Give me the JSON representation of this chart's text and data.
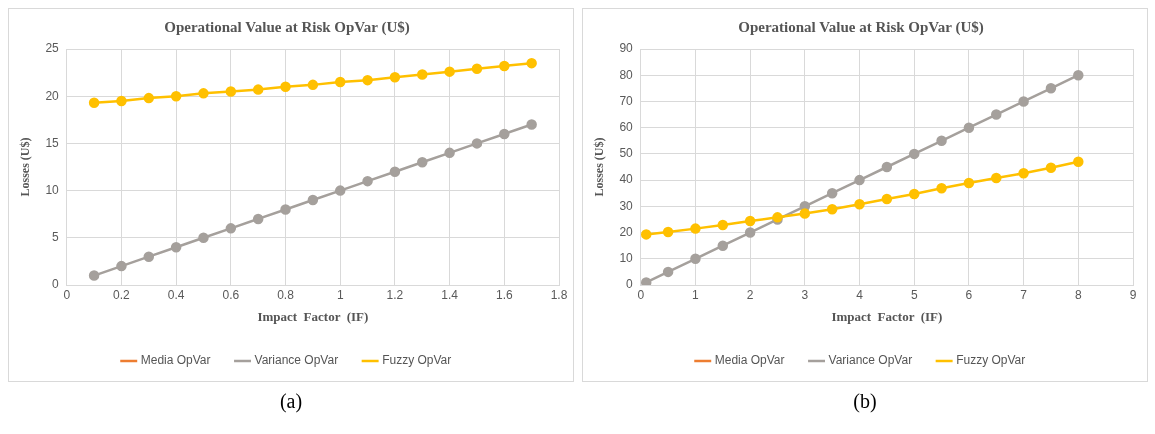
{
  "chart_data": [
    {
      "type": "line",
      "title": "Operational Value at Risk OpVar (U$)",
      "xlabel": "Impact  Factor  (IF)",
      "ylabel": "Losses (U$)",
      "x": [
        0.1,
        0.2,
        0.3,
        0.4,
        0.5,
        0.6,
        0.7,
        0.8,
        0.9,
        1.0,
        1.1,
        1.2,
        1.3,
        1.4,
        1.5,
        1.6,
        1.7
      ],
      "xlim": [
        0,
        1.8
      ],
      "xticks": [
        0,
        0.2,
        0.4,
        0.6,
        0.8,
        1,
        1.2,
        1.4,
        1.6,
        1.8
      ],
      "ylim": [
        0,
        25
      ],
      "yticks": [
        0,
        5,
        10,
        15,
        20,
        25
      ],
      "grid": true,
      "legend": "bottom",
      "marker": "circle",
      "line_style": "solid",
      "annotations": [
        "(a)"
      ],
      "series": [
        {
          "name": "Media OpVar",
          "color": "#ed7d31",
          "values": [
            null,
            null,
            null,
            null,
            null,
            null,
            null,
            null,
            null,
            null,
            null,
            null,
            null,
            null,
            null,
            null,
            null
          ]
        },
        {
          "name": "Variance OpVar",
          "color": "#a5a09c",
          "values": [
            1,
            2,
            3,
            4,
            5,
            6,
            7,
            8,
            9,
            10,
            11,
            12,
            13,
            14,
            15,
            16,
            17
          ]
        },
        {
          "name": "Fuzzy OpVar",
          "color": "#ffc000",
          "values": [
            19.3,
            19.5,
            19.8,
            20,
            20.3,
            20.5,
            20.7,
            21,
            21.2,
            21.5,
            21.7,
            22,
            22.3,
            22.6,
            22.9,
            23.2,
            23.5
          ]
        }
      ]
    },
    {
      "type": "line",
      "title": "Operational Value at Risk OpVar (U$)",
      "xlabel": "Impact  Factor  (IF)",
      "ylabel": "Losses (U$)",
      "x": [
        0.1,
        0.5,
        1,
        1.5,
        2,
        2.5,
        3,
        3.5,
        4,
        4.5,
        5,
        5.5,
        6,
        6.5,
        7,
        7.5,
        8
      ],
      "xlim": [
        0,
        9
      ],
      "xticks": [
        0,
        1,
        2,
        3,
        4,
        5,
        6,
        7,
        8,
        9
      ],
      "ylim": [
        0,
        90
      ],
      "yticks": [
        0,
        10,
        20,
        30,
        40,
        50,
        60,
        70,
        80,
        90
      ],
      "grid": true,
      "legend": "bottom",
      "marker": "circle",
      "line_style": "solid",
      "annotations": [
        "(b)"
      ],
      "series": [
        {
          "name": "Media OpVar",
          "color": "#ed7d31",
          "values": [
            null,
            null,
            null,
            null,
            null,
            null,
            null,
            null,
            null,
            null,
            null,
            null,
            null,
            null,
            null,
            null,
            null
          ]
        },
        {
          "name": "Variance OpVar",
          "color": "#a5a09c",
          "values": [
            1,
            5,
            10,
            15,
            20,
            25,
            30,
            35,
            40,
            45,
            50,
            55,
            60,
            65,
            70,
            75,
            80
          ]
        },
        {
          "name": "Fuzzy OpVar",
          "color": "#ffc000",
          "values": [
            19.3,
            20.2,
            21.5,
            22.9,
            24.4,
            25.8,
            27.3,
            28.9,
            30.8,
            32.8,
            34.7,
            36.9,
            38.9,
            40.8,
            42.6,
            44.7,
            47
          ]
        }
      ]
    }
  ]
}
